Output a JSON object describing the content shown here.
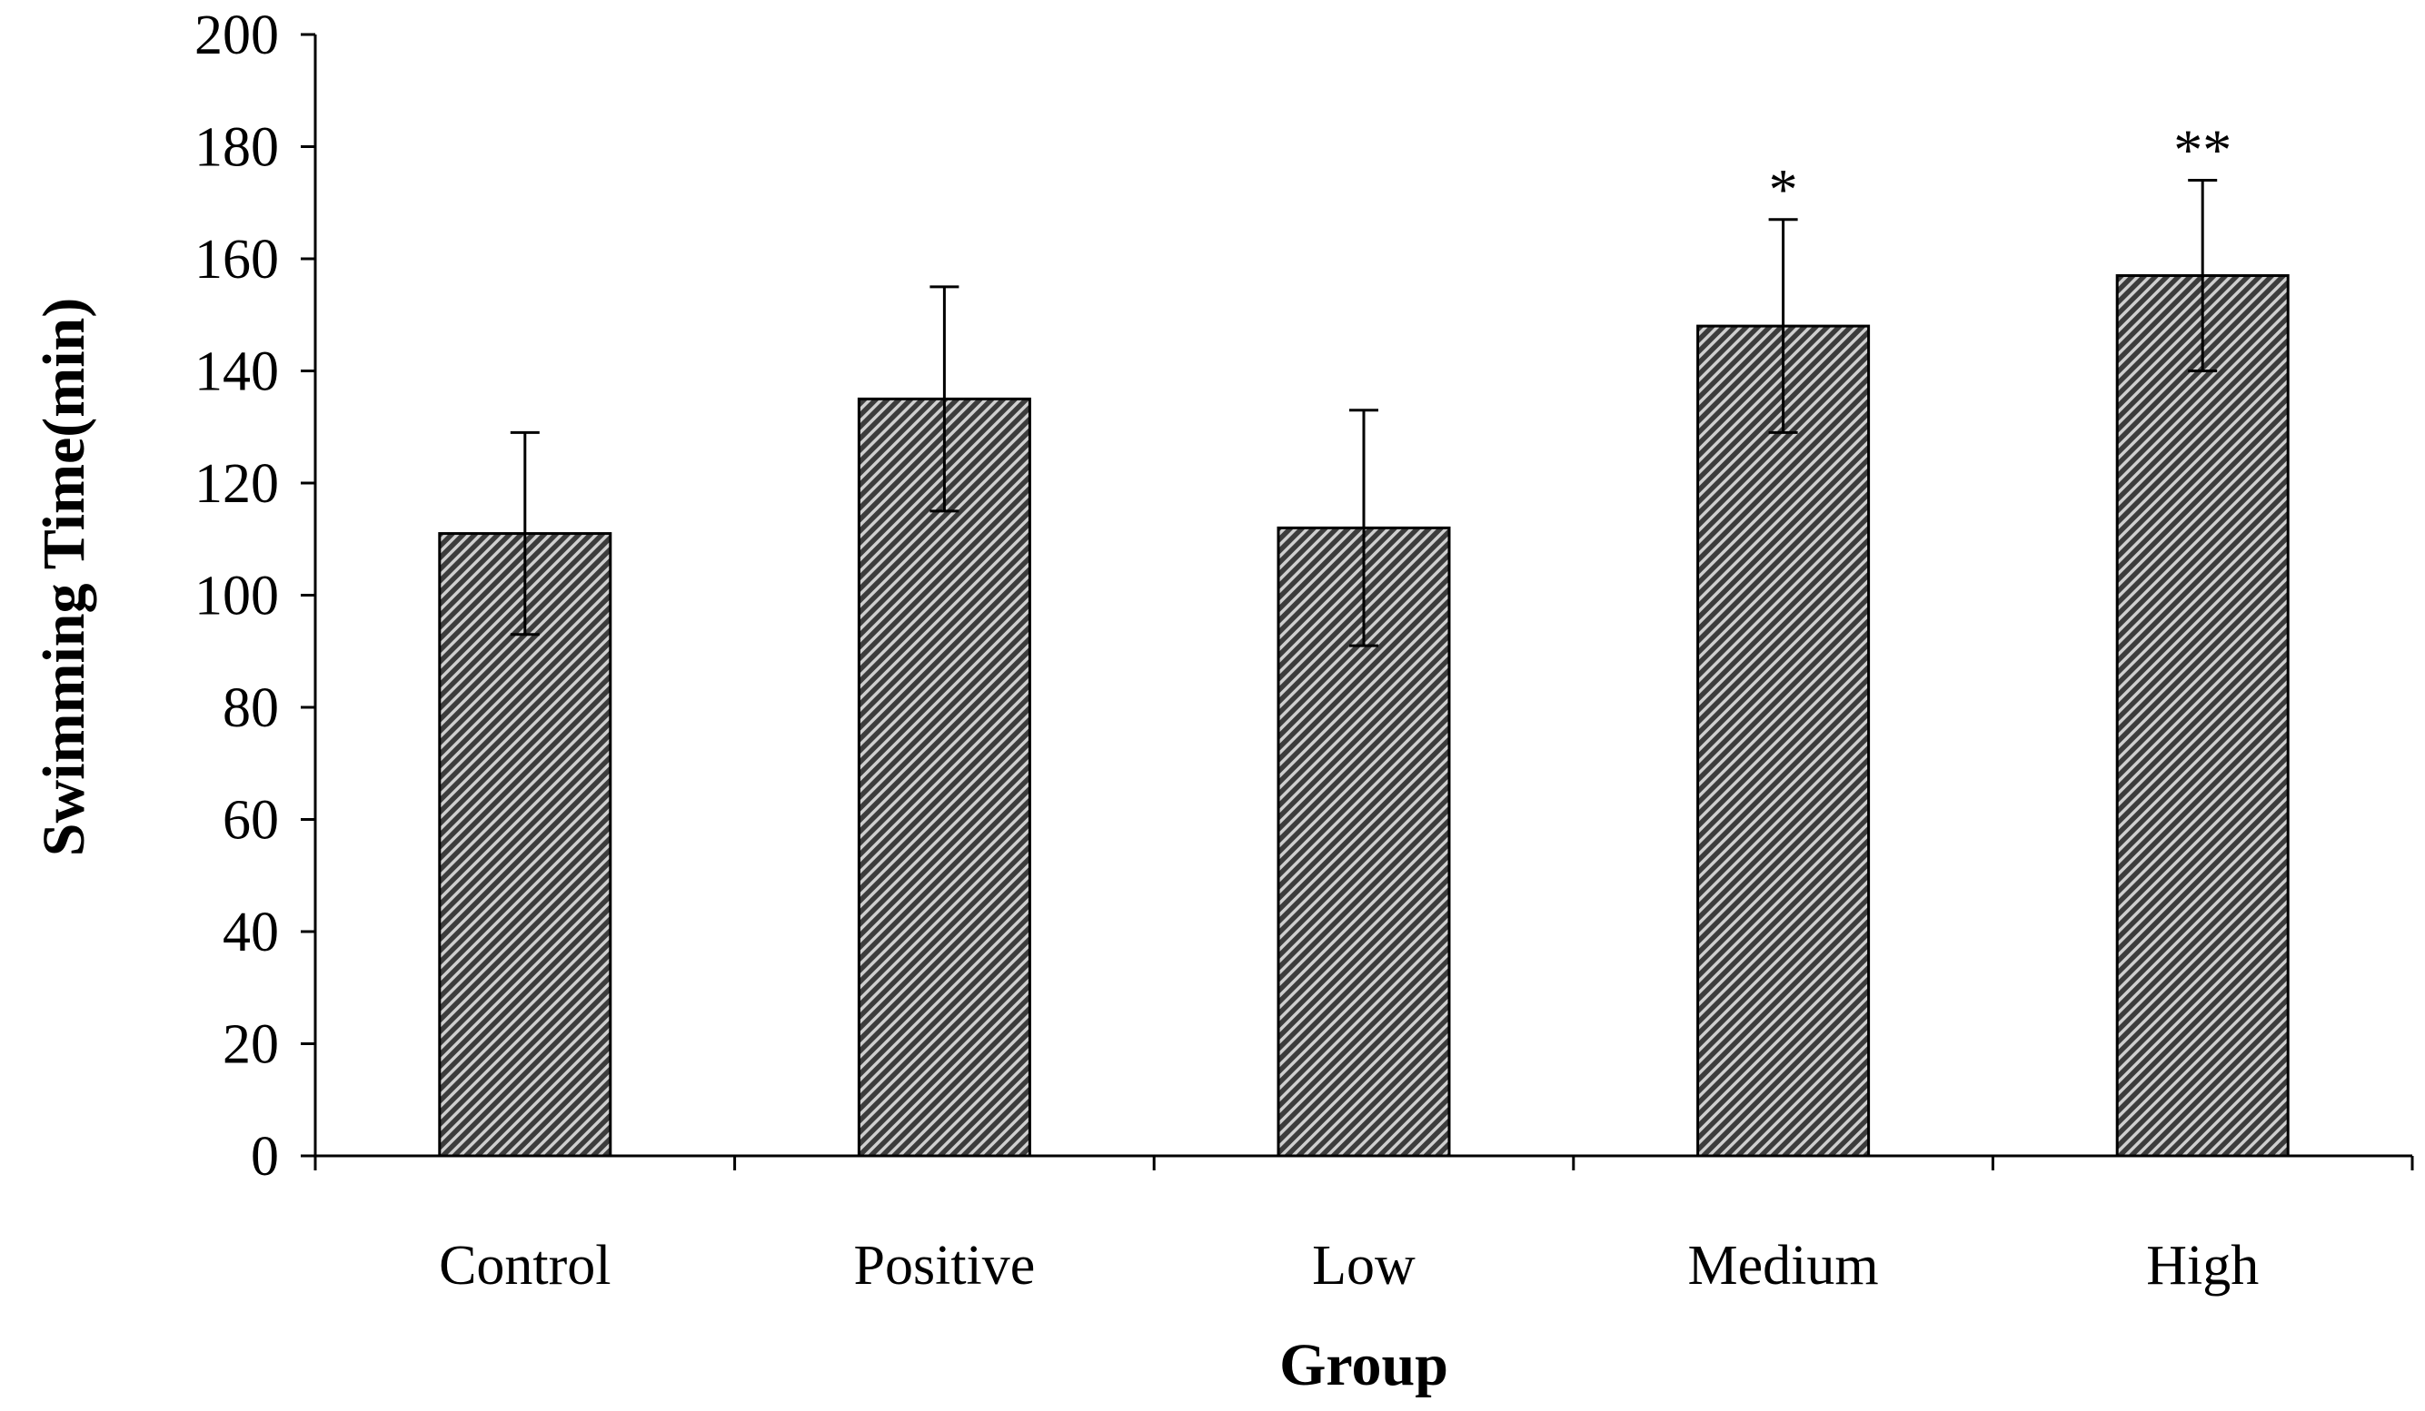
{
  "chart_data": {
    "type": "bar",
    "title": "",
    "xlabel": "Group",
    "ylabel": "Swimming Time(min)",
    "categories": [
      "Control",
      "Positive",
      "Low",
      "Medium",
      "High"
    ],
    "values": [
      111,
      135,
      112,
      148,
      157
    ],
    "errors": [
      18,
      20,
      21,
      19,
      17
    ],
    "annotations": [
      "",
      "",
      "",
      "*",
      "**"
    ],
    "ylim": [
      0,
      200
    ],
    "yticks": [
      0,
      20,
      40,
      60,
      80,
      100,
      120,
      140,
      160,
      180,
      200
    ],
    "grid": false,
    "legend": "none",
    "bar_fill": "#505050",
    "bar_pattern": "diagonal-hatch",
    "bar_edge": "#000000",
    "axis_color": "#000000"
  }
}
